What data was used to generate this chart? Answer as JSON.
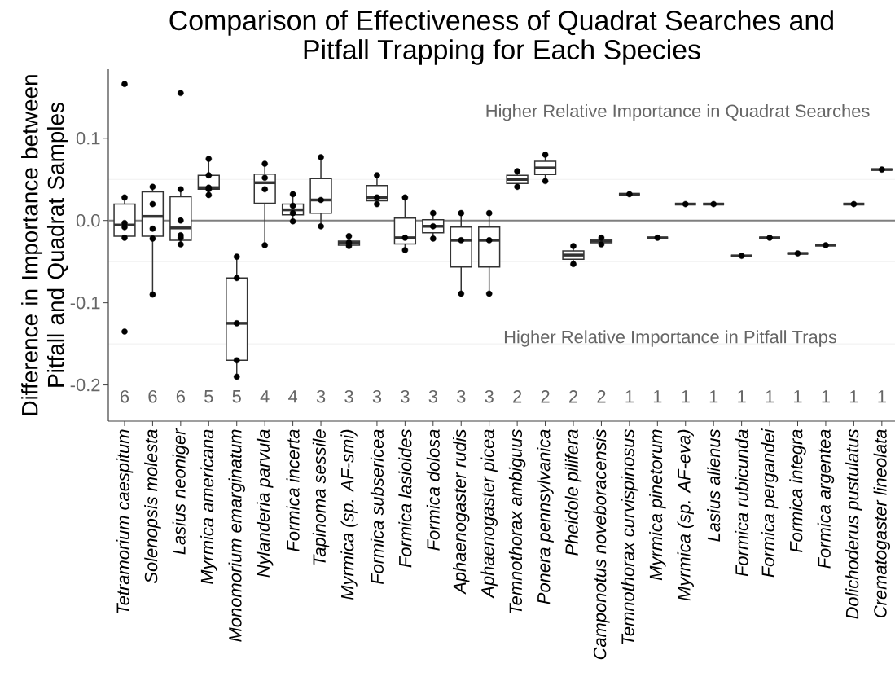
{
  "chart_data": {
    "type": "box",
    "title": "Comparison of Effectiveness of Quadrat Searches and Pitfall Trapping for Each Species",
    "ylabel": "Difference in Importance between Pitfall and Quadrat Samples",
    "categories": [
      "Tetramorium caespitum",
      "Solenopsis molesta",
      "Lasius neoniger",
      "Myrmica americana",
      "Monomorium emarginatum",
      "Nylanderia parvula",
      "Formica incerta",
      "Tapinoma sessile",
      "Myrmica (sp. AF-smi)",
      "Formica subsericea",
      "Formica lasioides",
      "Formica dolosa",
      "Aphaenogaster rudis",
      "Aphaenogaster picea",
      "Temnothorax ambiguus",
      "Ponera pennsylvanica",
      "Pheidole pilifera",
      "Camponotus noveboracensis",
      "Temnothorax curvispinosus",
      "Myrmica pinetorum",
      "Myrmica (sp. AF-eva)",
      "Lasius alienus",
      "Formica rubicunda",
      "Formica pergandei",
      "Formica integra",
      "Formica argentea",
      "Dolichoderus pustulatus",
      "Crematogaster lineolata"
    ],
    "boxes": [
      {
        "low": -0.021,
        "q1": -0.019,
        "median": -0.0055,
        "q3": 0.02,
        "high": 0.028
      },
      {
        "low": -0.09,
        "q1": -0.019,
        "median": 0.005,
        "q3": 0.035,
        "high": 0.041
      },
      {
        "low": -0.029,
        "q1": -0.024,
        "median": -0.009,
        "q3": 0.029,
        "high": 0.038
      },
      {
        "low": 0.031,
        "q1": 0.038,
        "median": 0.04,
        "q3": 0.055,
        "high": 0.075
      },
      {
        "low": -0.19,
        "q1": -0.17,
        "median": -0.125,
        "q3": -0.07,
        "high": -0.044
      },
      {
        "low": -0.03,
        "q1": 0.021,
        "median": 0.046,
        "q3": 0.0565,
        "high": 0.069
      },
      {
        "low": -0.001,
        "q1": 0.007,
        "median": 0.013,
        "q3": 0.02,
        "high": 0.032
      },
      {
        "low": -0.007,
        "q1": 0.009,
        "median": 0.025,
        "q3": 0.051,
        "high": 0.077
      },
      {
        "low": -0.031,
        "q1": -0.03,
        "median": -0.027,
        "q3": -0.025,
        "high": -0.019
      },
      {
        "low": 0.02,
        "q1": 0.024,
        "median": 0.028,
        "q3": 0.0425,
        "high": 0.055
      },
      {
        "low": -0.036,
        "q1": -0.0285,
        "median": -0.021,
        "q3": 0.003,
        "high": 0.028
      },
      {
        "low": -0.022,
        "q1": -0.015,
        "median": -0.007,
        "q3": 0.001,
        "high": 0.009
      },
      {
        "low": -0.089,
        "q1": -0.0565,
        "median": -0.024,
        "q3": -0.008,
        "high": 0.009
      },
      {
        "low": -0.089,
        "q1": -0.0565,
        "median": -0.024,
        "q3": -0.008,
        "high": 0.009
      },
      {
        "low": 0.041,
        "q1": 0.045,
        "median": 0.05,
        "q3": 0.055,
        "high": 0.06
      },
      {
        "low": 0.048,
        "q1": 0.056,
        "median": 0.064,
        "q3": 0.072,
        "high": 0.08
      },
      {
        "low": -0.053,
        "q1": -0.047,
        "median": -0.042,
        "q3": -0.037,
        "high": -0.031
      },
      {
        "low": -0.029,
        "q1": -0.027,
        "median": -0.025,
        "q3": -0.023,
        "high": -0.021
      },
      {
        "low": 0.032,
        "q1": 0.032,
        "median": 0.032,
        "q3": 0.032,
        "high": 0.032
      },
      {
        "low": -0.021,
        "q1": -0.021,
        "median": -0.021,
        "q3": -0.021,
        "high": -0.021
      },
      {
        "low": 0.02,
        "q1": 0.02,
        "median": 0.02,
        "q3": 0.02,
        "high": 0.02
      },
      {
        "low": 0.02,
        "q1": 0.02,
        "median": 0.02,
        "q3": 0.02,
        "high": 0.02
      },
      {
        "low": -0.043,
        "q1": -0.043,
        "median": -0.043,
        "q3": -0.043,
        "high": -0.043
      },
      {
        "low": -0.021,
        "q1": -0.021,
        "median": -0.021,
        "q3": -0.021,
        "high": -0.021
      },
      {
        "low": -0.04,
        "q1": -0.04,
        "median": -0.04,
        "q3": -0.04,
        "high": -0.04
      },
      {
        "low": -0.03,
        "q1": -0.03,
        "median": -0.03,
        "q3": -0.03,
        "high": -0.03
      },
      {
        "low": 0.02,
        "q1": 0.02,
        "median": 0.02,
        "q3": 0.02,
        "high": 0.02
      },
      {
        "low": 0.062,
        "q1": 0.062,
        "median": 0.062,
        "q3": 0.062,
        "high": 0.062
      }
    ],
    "series": [
      {
        "type": "scatter",
        "color": "#000000",
        "x": [
          "Tetramorium caespitum",
          "Tetramorium caespitum",
          "Tetramorium caespitum",
          "Tetramorium caespitum",
          "Tetramorium caespitum",
          "Tetramorium caespitum",
          "Solenopsis molesta",
          "Solenopsis molesta",
          "Solenopsis molesta",
          "Solenopsis molesta",
          "Solenopsis molesta",
          "Lasius neoniger",
          "Lasius neoniger",
          "Lasius neoniger",
          "Lasius neoniger",
          "Lasius neoniger",
          "Lasius neoniger",
          "Myrmica americana",
          "Myrmica americana",
          "Myrmica americana",
          "Myrmica americana",
          "Myrmica americana",
          "Monomorium emarginatum",
          "Monomorium emarginatum",
          "Monomorium emarginatum",
          "Monomorium emarginatum",
          "Monomorium emarginatum",
          "Nylanderia parvula",
          "Nylanderia parvula",
          "Nylanderia parvula",
          "Nylanderia parvula",
          "Formica incerta",
          "Formica incerta",
          "Formica incerta",
          "Formica incerta",
          "Tapinoma sessile",
          "Tapinoma sessile",
          "Tapinoma sessile",
          "Myrmica (sp. AF-smi)",
          "Myrmica (sp. AF-smi)",
          "Myrmica (sp. AF-smi)",
          "Formica subsericea",
          "Formica subsericea",
          "Formica subsericea",
          "Formica lasioides",
          "Formica lasioides",
          "Formica lasioides",
          "Formica dolosa",
          "Formica dolosa",
          "Formica dolosa",
          "Aphaenogaster rudis",
          "Aphaenogaster rudis",
          "Aphaenogaster rudis",
          "Aphaenogaster picea",
          "Aphaenogaster picea",
          "Aphaenogaster picea",
          "Temnothorax ambiguus",
          "Temnothorax ambiguus",
          "Ponera pennsylvanica",
          "Ponera pennsylvanica",
          "Pheidole pilifera",
          "Pheidole pilifera",
          "Camponotus noveboracensis",
          "Camponotus noveboracensis",
          "Temnothorax curvispinosus",
          "Myrmica pinetorum",
          "Myrmica (sp. AF-eva)",
          "Lasius alienus",
          "Formica rubicunda",
          "Formica pergandei",
          "Formica integra",
          "Formica argentea",
          "Dolichoderus pustulatus",
          "Crematogaster lineolata"
        ],
        "values": [
          0.166,
          0.028,
          -0.003,
          -0.008,
          -0.021,
          -0.135,
          0.041,
          0.02,
          -0.01,
          -0.022,
          -0.09,
          0.155,
          0.038,
          0.0,
          -0.018,
          -0.021,
          -0.029,
          0.075,
          0.055,
          0.04,
          0.038,
          0.031,
          -0.044,
          -0.07,
          -0.125,
          -0.17,
          -0.19,
          0.069,
          0.052,
          0.038,
          -0.03,
          0.032,
          0.018,
          0.009,
          -0.001,
          0.077,
          0.025,
          -0.007,
          -0.019,
          -0.027,
          -0.031,
          0.055,
          0.028,
          0.02,
          0.028,
          -0.021,
          -0.036,
          0.009,
          -0.007,
          -0.022,
          0.009,
          -0.024,
          -0.089,
          0.009,
          -0.024,
          -0.089,
          0.06,
          0.041,
          0.08,
          0.048,
          -0.031,
          -0.053,
          -0.021,
          -0.029,
          0.032,
          -0.021,
          0.02,
          0.02,
          -0.043,
          -0.021,
          -0.04,
          -0.03,
          0.02,
          0.062
        ]
      }
    ],
    "color": "#333333",
    "ylim": [
      -0.244,
      0.184
    ],
    "yticks": [
      0.1,
      {
        "value": 0,
        "label": "0.0"
      },
      -0.1,
      -0.2
    ],
    "grid": "y",
    "ref_lines": [
      {
        "axis": "y",
        "value": 0,
        "color": "#7f7f7f"
      }
    ],
    "annotations": [
      "Higher Relative Importance in Quadrat Searches",
      "Higher Relative Importance in Pitfall Traps",
      "6",
      "6",
      "6",
      "5",
      "5",
      "4",
      "4",
      "3",
      "3",
      "3",
      "3",
      "3",
      "3",
      "3",
      "2",
      "2",
      "2",
      "2",
      "1",
      "1",
      "1",
      "1",
      "1",
      "1",
      "1",
      "1",
      "1",
      "1"
    ]
  }
}
